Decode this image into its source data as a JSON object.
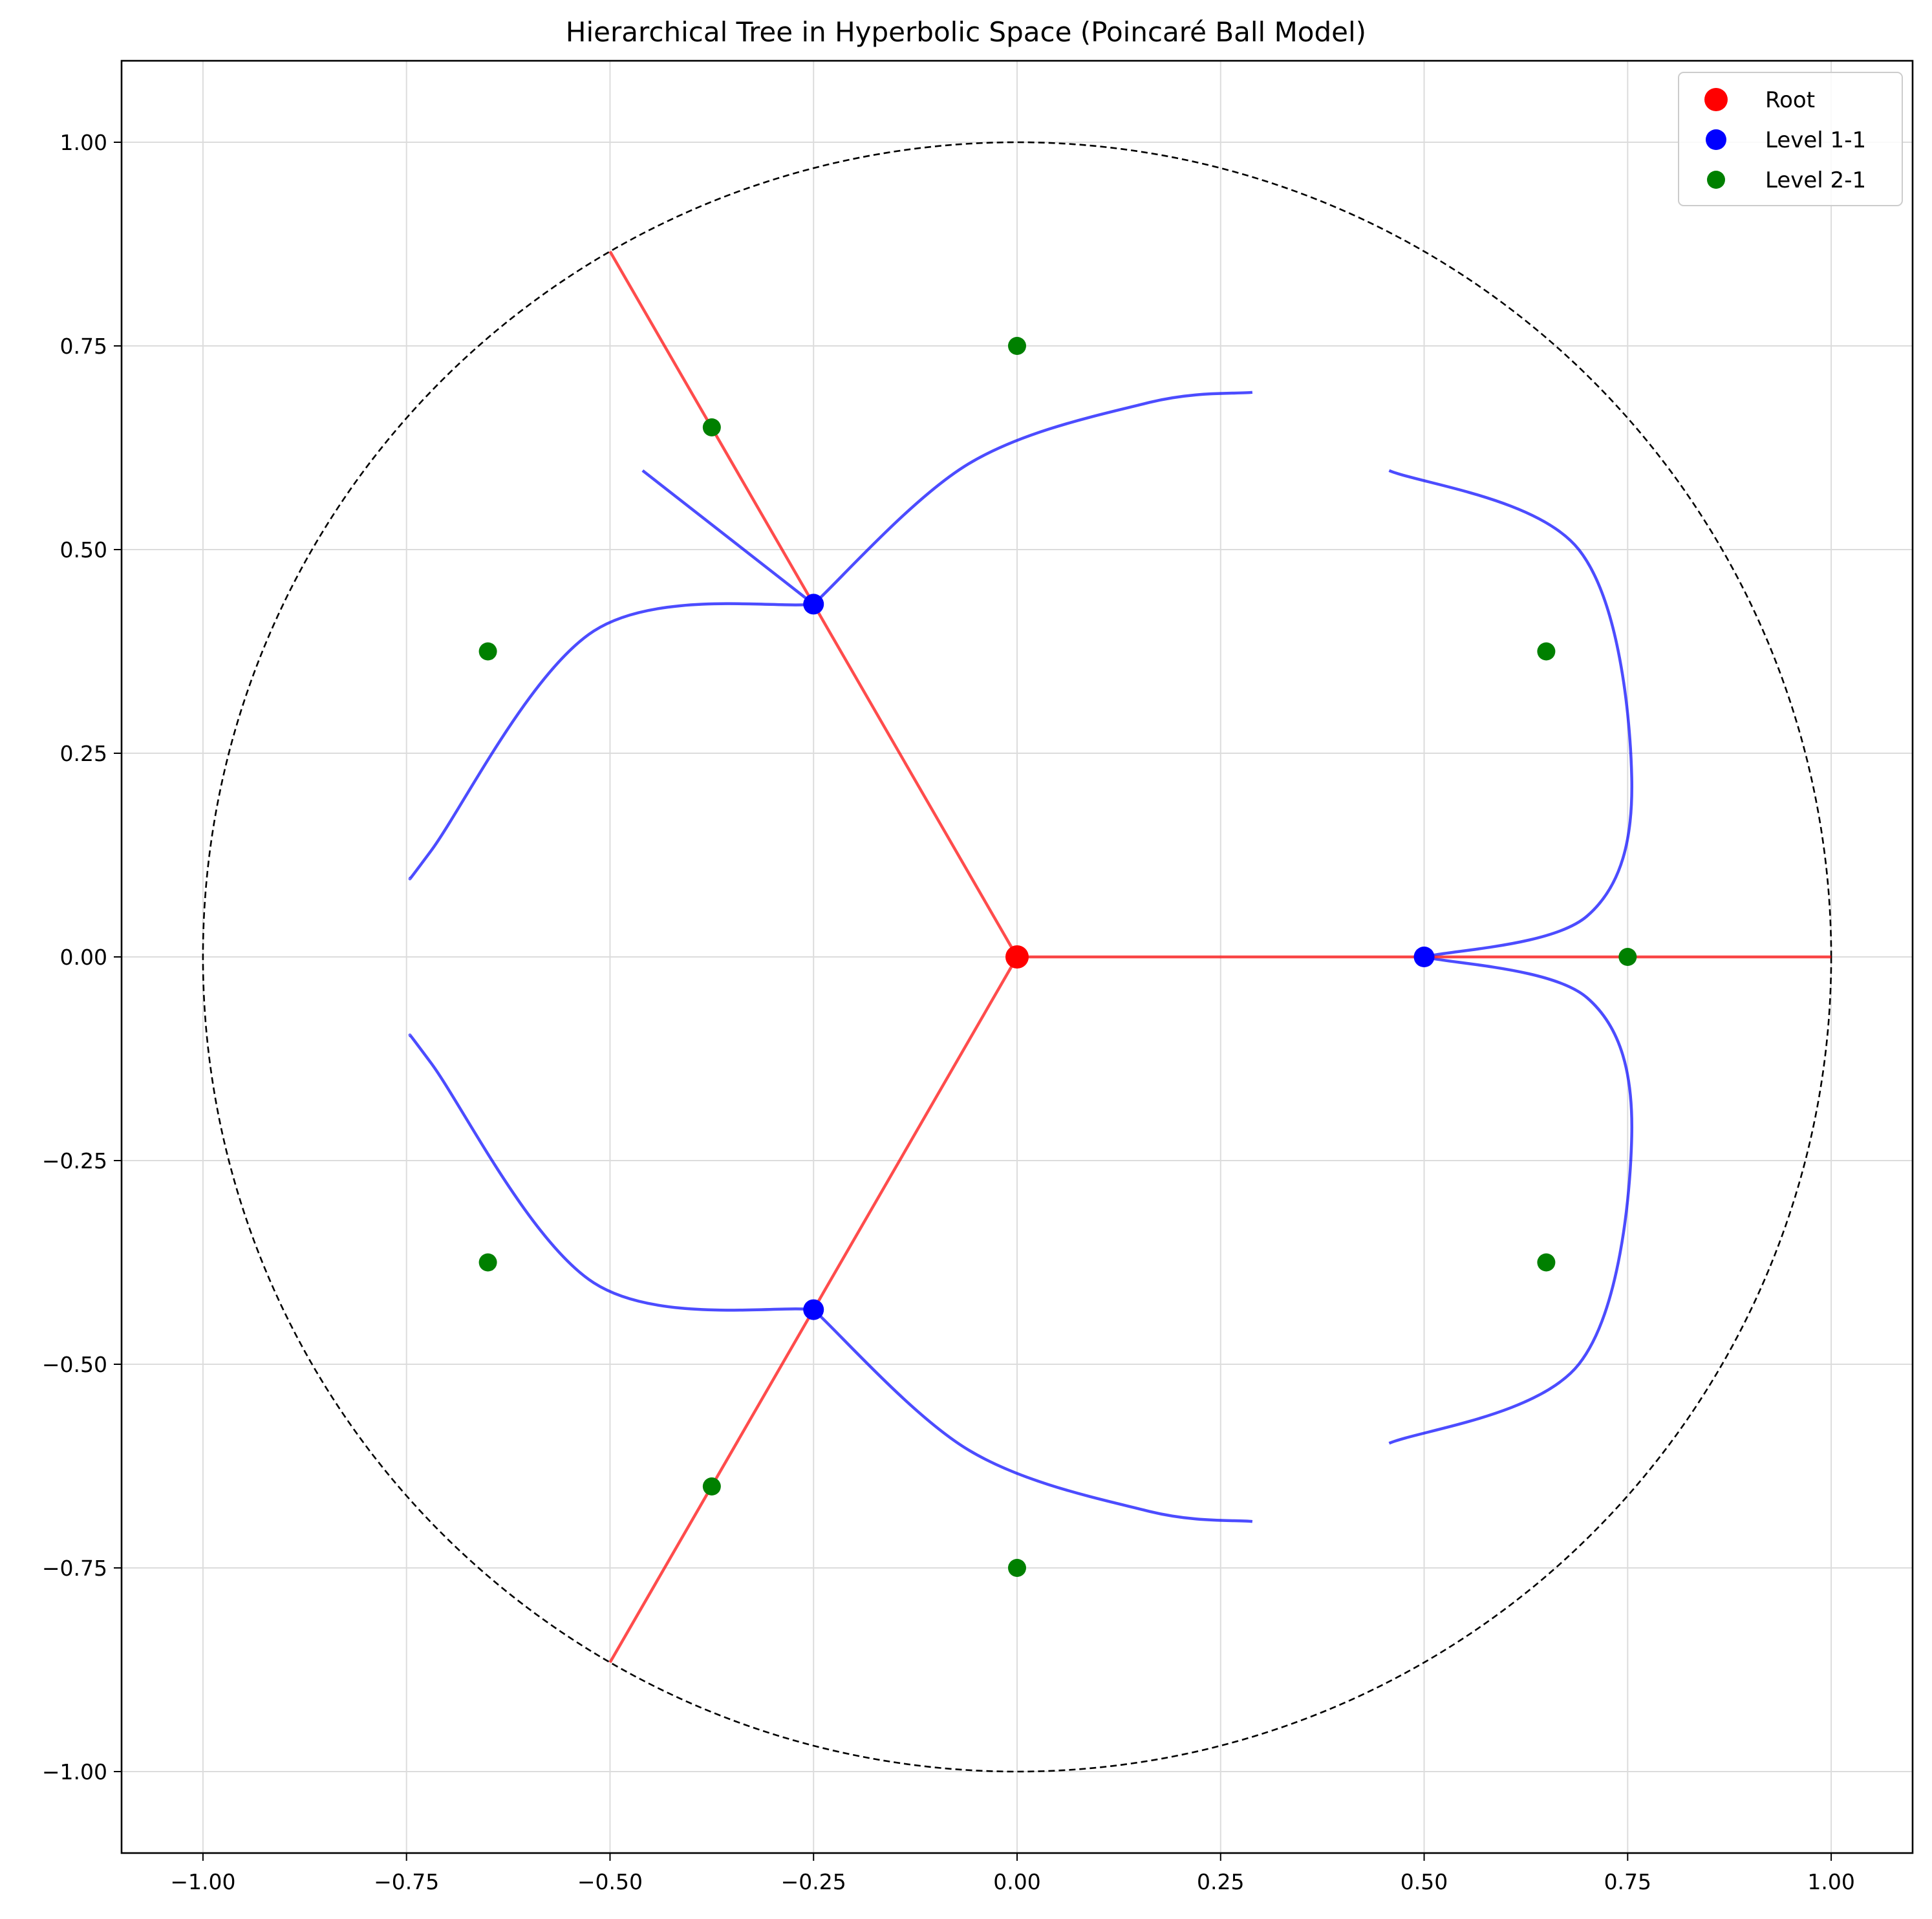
{
  "chart_data": {
    "type": "scatter",
    "title": "Hierarchical Tree in Hyperbolic Space (Poincaré Ball Model)",
    "xlabel": "",
    "ylabel": "",
    "xlim": [
      -1.1,
      1.1
    ],
    "ylim": [
      -1.1,
      1.1
    ],
    "xticks": [
      -1.0,
      -0.75,
      -0.5,
      -0.25,
      0.0,
      0.25,
      0.5,
      0.75,
      1.0
    ],
    "yticks": [
      -1.0,
      -0.75,
      -0.5,
      -0.25,
      0.0,
      0.25,
      0.5,
      0.75,
      1.0
    ],
    "xtick_labels": [
      "−1.00",
      "−0.75",
      "−0.50",
      "−0.25",
      "0.00",
      "0.25",
      "0.50",
      "0.75",
      "1.00"
    ],
    "ytick_labels": [
      "−1.00",
      "−0.75",
      "−0.50",
      "−0.25",
      "0.00",
      "0.25",
      "0.50",
      "0.75",
      "1.00"
    ],
    "grid": true,
    "legend_position": "top-right",
    "boundary_circle": {
      "center": [
        0,
        0
      ],
      "radius": 1.0,
      "style": "dashed",
      "color": "#000000"
    },
    "series": [
      {
        "name": "Root",
        "color": "#ff0000",
        "points": [
          [
            0.0,
            0.0
          ]
        ]
      },
      {
        "name": "Level 1-1",
        "color": "#0000ff",
        "points": [
          [
            0.5,
            0.0
          ],
          [
            -0.25,
            0.433
          ],
          [
            -0.25,
            -0.433
          ]
        ]
      },
      {
        "name": "Level 2-1",
        "color": "#008000",
        "points": [
          [
            0.75,
            0.0
          ],
          [
            0.65,
            0.375
          ],
          [
            0.65,
            -0.375
          ],
          [
            0.0,
            0.75
          ],
          [
            -0.375,
            0.65
          ],
          [
            -0.65,
            0.375
          ],
          [
            -0.65,
            -0.375
          ],
          [
            -0.375,
            -0.65
          ],
          [
            0.0,
            -0.75
          ]
        ]
      }
    ],
    "red_geodesics": [
      [
        [
          0.0,
          0.0
        ],
        [
          1.0,
          0.0
        ]
      ],
      [
        [
          0.0,
          0.0
        ],
        [
          -0.5,
          0.866
        ]
      ],
      [
        [
          0.0,
          0.0
        ],
        [
          -0.5,
          -0.866
        ]
      ]
    ],
    "blue_geodesics": [
      [
        [
          0.5,
          0.0
        ],
        [
          0.7,
          0.05
        ],
        [
          0.755,
          0.22
        ],
        [
          0.69,
          0.5
        ],
        [
          0.457,
          0.597
        ]
      ],
      [
        [
          0.5,
          0.0
        ],
        [
          0.7,
          -0.05
        ],
        [
          0.755,
          -0.22
        ],
        [
          0.69,
          -0.5
        ],
        [
          0.457,
          -0.597
        ]
      ],
      [
        [
          -0.25,
          0.433
        ],
        [
          -0.06,
          0.605
        ],
        [
          0.16,
          0.68
        ],
        [
          0.289,
          0.693
        ]
      ],
      [
        [
          -0.25,
          0.433
        ],
        [
          -0.46,
          0.597
        ]
      ],
      [
        [
          -0.25,
          0.433
        ],
        [
          -0.52,
          0.4
        ],
        [
          -0.72,
          0.13
        ],
        [
          -0.746,
          0.096
        ]
      ],
      [
        [
          -0.25,
          -0.433
        ],
        [
          -0.06,
          -0.605
        ],
        [
          0.16,
          -0.68
        ],
        [
          0.289,
          -0.693
        ]
      ],
      [
        [
          -0.25,
          -0.433
        ],
        [
          -0.52,
          -0.4
        ],
        [
          -0.72,
          -0.13
        ],
        [
          -0.746,
          -0.096
        ]
      ]
    ]
  }
}
